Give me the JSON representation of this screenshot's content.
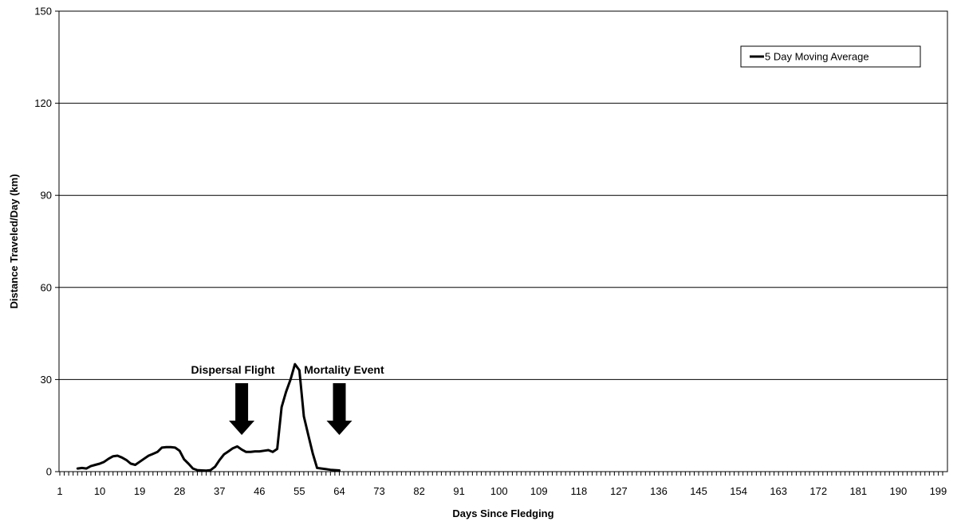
{
  "chart_data": {
    "type": "line",
    "xlabel": "Days Since Fledging",
    "ylabel": "Distance Traveled/Day (km)",
    "xlim": [
      1,
      200
    ],
    "ylim": [
      0,
      150
    ],
    "x_ticks": [
      1,
      10,
      19,
      28,
      37,
      46,
      55,
      64,
      73,
      82,
      91,
      100,
      109,
      118,
      127,
      136,
      145,
      154,
      163,
      172,
      181,
      190,
      199
    ],
    "y_ticks": [
      0,
      30,
      60,
      90,
      120,
      150
    ],
    "grid": "horizontal",
    "legend_position": "top-right",
    "series": [
      {
        "name": "5 Day Moving Average",
        "color": "#000000",
        "x": [
          5,
          6,
          7,
          8,
          9,
          10,
          11,
          12,
          13,
          14,
          15,
          16,
          17,
          18,
          19,
          20,
          21,
          22,
          23,
          24,
          25,
          26,
          27,
          28,
          29,
          30,
          31,
          32,
          33,
          34,
          35,
          36,
          37,
          38,
          39,
          40,
          41,
          42,
          43,
          44,
          45,
          46,
          47,
          48,
          49,
          50,
          51,
          52,
          53,
          54,
          55,
          56,
          57,
          58,
          59,
          60,
          61,
          62,
          63,
          64
        ],
        "values": [
          1.0,
          1.2,
          1.0,
          1.8,
          2.2,
          2.6,
          3.2,
          4.2,
          5.0,
          5.2,
          4.6,
          3.8,
          2.6,
          2.2,
          3.2,
          4.2,
          5.2,
          5.8,
          6.4,
          7.8,
          8.0,
          8.0,
          7.8,
          6.8,
          4.0,
          2.6,
          1.0,
          0.5,
          0.4,
          0.3,
          0.5,
          1.6,
          3.8,
          5.6,
          6.6,
          7.6,
          8.2,
          7.2,
          6.4,
          6.4,
          6.6,
          6.6,
          6.8,
          7.0,
          6.4,
          7.4,
          21.0,
          26.0,
          30.0,
          35.0,
          33.0,
          18.0,
          12.0,
          6.0,
          1.2,
          1.0,
          0.8,
          0.6,
          0.5,
          0.4
        ]
      }
    ],
    "annotations": [
      {
        "text": "Dispersal Flight",
        "x": 42
      },
      {
        "text": "Mortality Event",
        "x": 64
      }
    ]
  }
}
